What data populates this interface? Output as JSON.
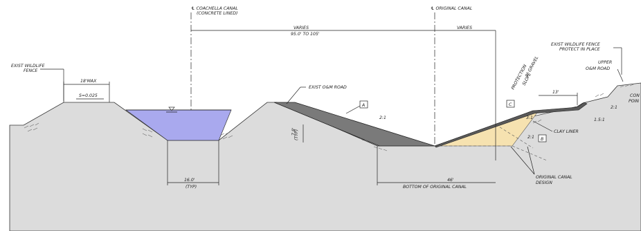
{
  "labels": {
    "coachella_canal_cl": "℄ COACHELLA CANAL",
    "concrete_lined": "(CONCRETE LINED)",
    "original_canal_cl": "℄ ORIGINAL CANAL",
    "varies_left": "VARIES",
    "varies_range": "95.0' TO 105'",
    "varies_right": "VARIES",
    "exist_wildlife_fence_left_1": "EXIST WILDLIFE",
    "exist_wildlife_fence_left_2": "FENCE",
    "max_18": "18'MAX",
    "slope_s": "S=0.025",
    "exist_om_road": "EXIST O&M ROAD",
    "callout_a": "A",
    "callout_b": "B",
    "callout_c": "C",
    "slope_2_1_top": "2:1",
    "slope_2_1_right": "2:1",
    "slope_2_1_lower": "2:1",
    "slope_1_5_1": "1.5:1",
    "slope_3_1": "3:1",
    "dim_7_8": "7.8'",
    "dim_typ_small": "(TYP)",
    "dim_16": "16.0'",
    "dim_16_typ": "(TYP)",
    "dim_46": "46'",
    "bottom_original_canal": "BOTTOM OF ORIGINAL CANAL",
    "gravel_1": "9\" GRAVEL",
    "gravel_2": "SLOPE",
    "gravel_3": "PROTECTION",
    "dim_13": "13'",
    "clay_liner": "CLAY LINER",
    "exist_wildlife_fence_right_1": "EXIST WILDLIFE FENCE",
    "exist_wildlife_fence_right_2": "PROTECT IN PLACE",
    "upper_om_road_1": "UPPER",
    "upper_om_road_2": "O&M ROAD",
    "original_canal_design_1": "ORIGINAL CANAL",
    "original_canal_design_2": "DESIGN",
    "cropped_con": "CON",
    "cropped_poin": "POIN"
  },
  "colors": {
    "ground": "#dcdcdc",
    "water": "#a9a9ee",
    "road": "#7a7a7a",
    "fill": "#f6e2b0",
    "liner": "#5a5a5a"
  }
}
